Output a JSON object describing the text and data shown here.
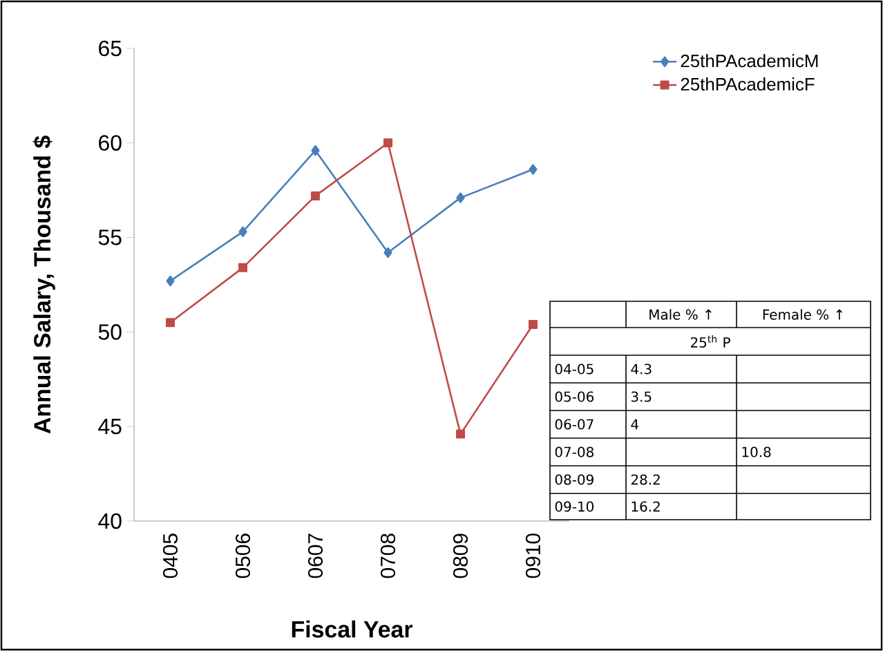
{
  "chart_data": {
    "type": "line",
    "xlabel": "Fiscal Year",
    "ylabel": "Annual Salary, Thousand $",
    "categories": [
      "0405",
      "0506",
      "0607",
      "0708",
      "0809",
      "0910"
    ],
    "series": [
      {
        "name": "25thPAcademicM",
        "color": "#4a7ebb",
        "marker": "diamond",
        "values": [
          52.7,
          55.3,
          59.6,
          54.2,
          57.1,
          58.6
        ]
      },
      {
        "name": "25thPAcademicF",
        "color": "#be4b48",
        "marker": "square",
        "values": [
          50.5,
          53.4,
          57.2,
          60.0,
          44.6,
          50.4
        ]
      }
    ],
    "ylim": [
      40,
      65
    ],
    "yticks": [
      40,
      45,
      50,
      55,
      60,
      65
    ],
    "grid": false,
    "legend": "top right",
    "line_style": "solid",
    "annotations": [
      "Male  % ↑",
      "Female  % ↑",
      "25$^{th}$ P",
      "04-05",
      "4.3",
      "05-06",
      "3.5",
      "06-07",
      "4",
      "07-08",
      "10.8",
      "08-09",
      "28.2",
      "09-10",
      "16.2"
    ]
  }
}
